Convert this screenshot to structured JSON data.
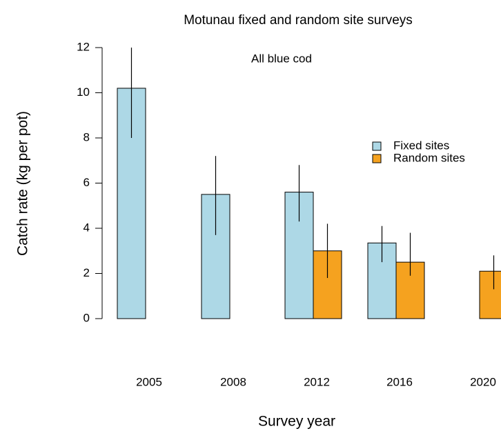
{
  "chart_data": {
    "type": "bar",
    "title": "Motunau fixed and random site surveys",
    "annotation": "All blue cod",
    "x_label": "Survey year",
    "y_label": "Catch rate (kg per pot)",
    "categories": [
      "2005",
      "2008",
      "2012",
      "2016",
      "2020"
    ],
    "series": [
      {
        "name": "Fixed sites",
        "color": "#add8e6",
        "values": [
          10.2,
          5.5,
          5.6,
          3.35,
          null
        ],
        "lower": [
          8.0,
          3.7,
          4.3,
          2.5,
          null
        ],
        "upper": [
          12.0,
          7.2,
          6.8,
          4.1,
          null
        ]
      },
      {
        "name": "Random sites",
        "color": "#f5a21f",
        "values": [
          null,
          null,
          3.0,
          2.5,
          2.1
        ],
        "lower": [
          null,
          null,
          1.8,
          1.9,
          1.3
        ],
        "upper": [
          null,
          null,
          4.2,
          3.8,
          2.8
        ]
      }
    ],
    "ylim": [
      0,
      12
    ],
    "yticks": [
      0,
      2,
      4,
      6,
      8,
      10,
      12
    ],
    "legend": "right"
  }
}
